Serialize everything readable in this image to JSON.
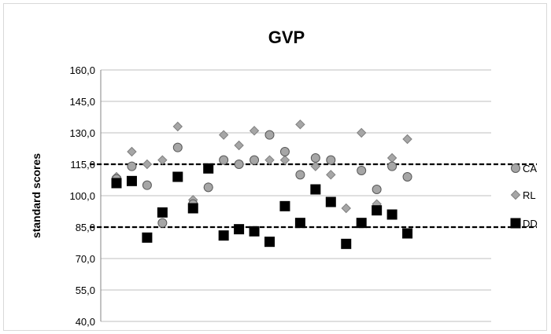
{
  "chart_data": {
    "type": "scatter",
    "title": "GVP",
    "xlabel": "",
    "ylabel": "standard scores",
    "ylim": [
      40,
      160
    ],
    "yticks": [
      "160,0",
      "145,0",
      "130,0",
      "115,0",
      "100,0",
      "85,0",
      "70,0",
      "55,0",
      "40,0"
    ],
    "ytick_values": [
      160,
      145,
      130,
      115,
      100,
      85,
      70,
      55,
      40
    ],
    "grid": true,
    "legend_position": "right",
    "reference_lines": [
      115,
      85
    ],
    "x": [
      1,
      2,
      3,
      4,
      5,
      6,
      7,
      8,
      9,
      10,
      11,
      12,
      13,
      14,
      15,
      16,
      17,
      18,
      19,
      20
    ],
    "series": [
      {
        "name": "CA",
        "marker": "circle",
        "color": "#a6a6a6",
        "values": [
          108,
          114,
          105,
          87,
          123,
          96,
          104,
          117,
          115,
          117,
          129,
          121,
          110,
          118,
          117,
          77,
          112,
          103,
          114,
          109
        ]
      },
      {
        "name": "RL",
        "marker": "diamond",
        "color": "#a6a6a6",
        "values": [
          109,
          121,
          115,
          117,
          133,
          98,
          104,
          129,
          124,
          131,
          117,
          117,
          134,
          114,
          110,
          94,
          130,
          96,
          118,
          127
        ]
      },
      {
        "name": "DD",
        "marker": "square",
        "color": "#000000",
        "values": [
          106,
          107,
          80,
          92,
          109,
          94,
          113,
          81,
          84,
          83,
          78,
          95,
          87,
          103,
          97,
          77,
          87,
          93,
          91,
          82
        ]
      }
    ]
  }
}
